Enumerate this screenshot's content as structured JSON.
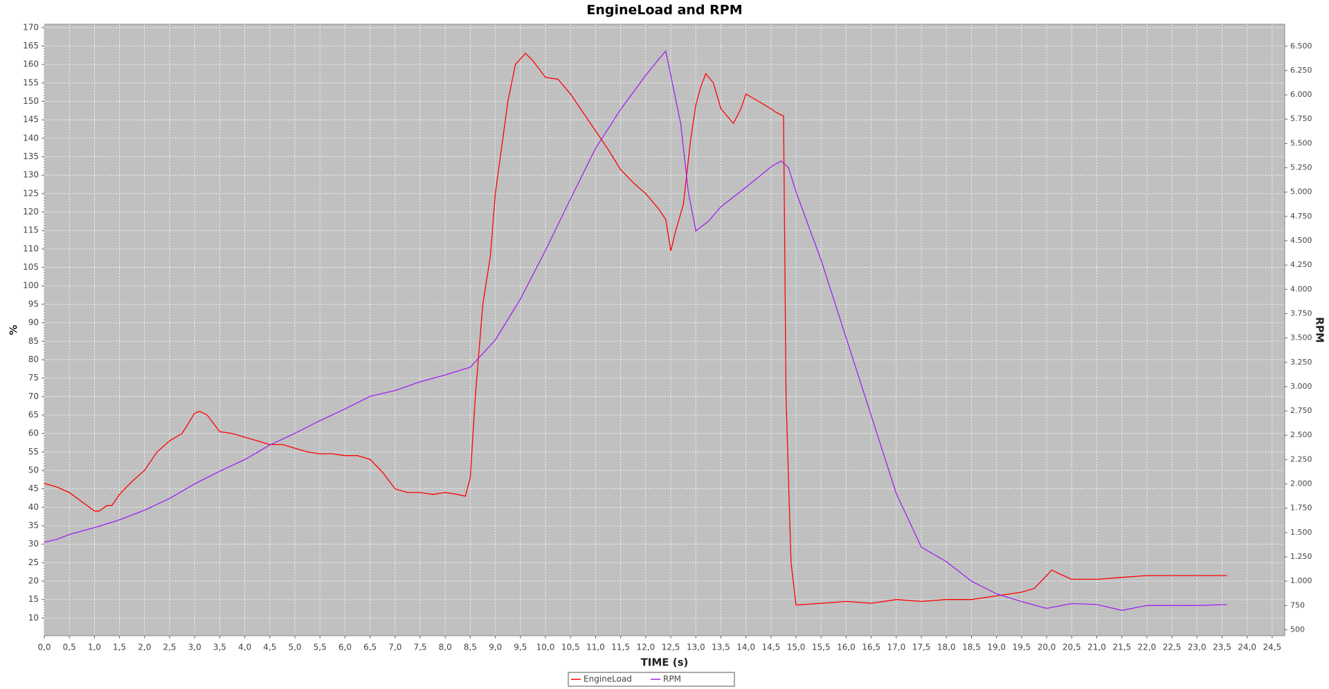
{
  "chart_data": {
    "type": "line",
    "title": "EngineLoad and RPM",
    "x_label": "TIME (s)",
    "y_label": "%",
    "y2_label": "RPM",
    "xlim": [
      0,
      24.75
    ],
    "ylim": [
      5.2,
      170.9
    ],
    "y2lim": [
      439,
      6726
    ],
    "grid": true,
    "legend": "bottom",
    "xticks": [
      {
        "value": 0,
        "label": "0,0"
      },
      {
        "value": 0.5,
        "label": "0,5"
      },
      {
        "value": 1,
        "label": "1,0"
      },
      {
        "value": 1.5,
        "label": "1,5"
      },
      {
        "value": 2,
        "label": "2,0"
      },
      {
        "value": 2.5,
        "label": "2,5"
      },
      {
        "value": 3,
        "label": "3,0"
      },
      {
        "value": 3.5,
        "label": "3,5"
      },
      {
        "value": 4,
        "label": "4,0"
      },
      {
        "value": 4.5,
        "label": "4,5"
      },
      {
        "value": 5,
        "label": "5,0"
      },
      {
        "value": 5.5,
        "label": "5,5"
      },
      {
        "value": 6,
        "label": "6,0"
      },
      {
        "value": 6.5,
        "label": "6,5"
      },
      {
        "value": 7,
        "label": "7,0"
      },
      {
        "value": 7.5,
        "label": "7,5"
      },
      {
        "value": 8,
        "label": "8,0"
      },
      {
        "value": 8.5,
        "label": "8,5"
      },
      {
        "value": 9,
        "label": "9,0"
      },
      {
        "value": 9.5,
        "label": "9,5"
      },
      {
        "value": 10,
        "label": "10,0"
      },
      {
        "value": 10.5,
        "label": "10,5"
      },
      {
        "value": 11,
        "label": "11,0"
      },
      {
        "value": 11.5,
        "label": "11,5"
      },
      {
        "value": 12,
        "label": "12,0"
      },
      {
        "value": 12.5,
        "label": "12,5"
      },
      {
        "value": 13,
        "label": "13,0"
      },
      {
        "value": 13.5,
        "label": "13,5"
      },
      {
        "value": 14,
        "label": "14,0"
      },
      {
        "value": 14.5,
        "label": "14,5"
      },
      {
        "value": 15,
        "label": "15,0"
      },
      {
        "value": 15.5,
        "label": "15,5"
      },
      {
        "value": 16,
        "label": "16,0"
      },
      {
        "value": 16.5,
        "label": "16,5"
      },
      {
        "value": 17,
        "label": "17,0"
      },
      {
        "value": 17.5,
        "label": "17,5"
      },
      {
        "value": 18,
        "label": "18,0"
      },
      {
        "value": 18.5,
        "label": "18,5"
      },
      {
        "value": 19,
        "label": "19,0"
      },
      {
        "value": 19.5,
        "label": "19,5"
      },
      {
        "value": 20,
        "label": "20,0"
      },
      {
        "value": 20.5,
        "label": "20,5"
      },
      {
        "value": 21,
        "label": "21,0"
      },
      {
        "value": 21.5,
        "label": "21,5"
      },
      {
        "value": 22,
        "label": "22,0"
      },
      {
        "value": 22.5,
        "label": "22,5"
      },
      {
        "value": 23,
        "label": "23,0"
      },
      {
        "value": 23.5,
        "label": "23,5"
      },
      {
        "value": 24,
        "label": "24,0"
      },
      {
        "value": 24.5,
        "label": "24,5"
      }
    ],
    "yticks": [
      10,
      15,
      20,
      25,
      30,
      35,
      40,
      45,
      50,
      55,
      60,
      65,
      70,
      75,
      80,
      85,
      90,
      95,
      100,
      105,
      110,
      115,
      120,
      125,
      130,
      135,
      140,
      145,
      150,
      155,
      160,
      165,
      170
    ],
    "y2ticks": [
      500,
      750,
      {
        "value": 1000,
        "label": "1.000"
      },
      {
        "value": 1250,
        "label": "1.250"
      },
      {
        "value": 1500,
        "label": "1.500"
      },
      {
        "value": 1750,
        "label": "1.750"
      },
      {
        "value": 2000,
        "label": "2.000"
      },
      {
        "value": 2250,
        "label": "2.250"
      },
      {
        "value": 2500,
        "label": "2.500"
      },
      {
        "value": 2750,
        "label": "2.750"
      },
      {
        "value": 3000,
        "label": "3.000"
      },
      {
        "value": 3250,
        "label": "3.250"
      },
      {
        "value": 3500,
        "label": "3.500"
      },
      {
        "value": 3750,
        "label": "3.750"
      },
      {
        "value": 4000,
        "label": "4.000"
      },
      {
        "value": 4250,
        "label": "4.250"
      },
      {
        "value": 4500,
        "label": "4.500"
      },
      {
        "value": 4750,
        "label": "4.750"
      },
      {
        "value": 5000,
        "label": "5.000"
      },
      {
        "value": 5250,
        "label": "5.250"
      },
      {
        "value": 5500,
        "label": "5.500"
      },
      {
        "value": 5750,
        "label": "5.750"
      },
      {
        "value": 6000,
        "label": "6.000"
      },
      {
        "value": 6250,
        "label": "6.250"
      },
      {
        "value": 6500,
        "label": "6.500"
      }
    ],
    "series": [
      {
        "name": "EngineLoad",
        "color": "#ff0000",
        "x": [
          0,
          0.25,
          0.5,
          0.75,
          1.0,
          1.1,
          1.25,
          1.35,
          1.5,
          1.75,
          2.0,
          2.25,
          2.5,
          2.75,
          3.0,
          3.1,
          3.25,
          3.5,
          3.75,
          4.0,
          4.25,
          4.5,
          4.75,
          5.0,
          5.25,
          5.5,
          5.75,
          6.0,
          6.25,
          6.5,
          6.75,
          7.0,
          7.25,
          7.5,
          7.75,
          8.0,
          8.25,
          8.4,
          8.5,
          8.6,
          8.75,
          8.9,
          9.0,
          9.25,
          9.4,
          9.6,
          9.75,
          10.0,
          10.25,
          10.5,
          10.75,
          11.0,
          11.25,
          11.5,
          11.75,
          12.0,
          12.25,
          12.4,
          12.5,
          12.6,
          12.75,
          12.9,
          13.0,
          13.1,
          13.2,
          13.35,
          13.5,
          13.75,
          13.9,
          14.0,
          14.25,
          14.5,
          14.6,
          14.75,
          14.8,
          14.9,
          15.0,
          15.5,
          16.0,
          16.5,
          17.0,
          17.5,
          18.0,
          18.5,
          19.0,
          19.5,
          19.75,
          20.0,
          20.1,
          20.25,
          20.5,
          21.0,
          21.5,
          22.0,
          23.6
        ],
        "values": [
          46.5,
          45.5,
          44,
          41.5,
          39,
          39,
          40.5,
          40.5,
          43.5,
          47,
          50,
          55,
          58,
          60,
          65.5,
          66,
          65,
          60.5,
          60,
          59,
          58,
          57,
          57,
          56,
          55,
          54.5,
          54.5,
          54,
          54,
          53,
          49.5,
          45,
          44,
          44,
          43.5,
          44,
          43.5,
          43,
          48,
          70,
          95,
          108,
          125,
          150,
          160,
          163,
          161,
          156.5,
          156,
          152,
          147,
          142,
          137,
          131.5,
          128,
          125,
          121,
          118,
          109.5,
          115,
          122,
          140,
          149,
          154,
          157.5,
          155,
          148,
          144,
          148,
          152,
          150,
          148,
          147,
          146,
          70,
          25,
          13.5,
          14,
          14.5,
          14,
          15,
          14.5,
          15,
          15,
          16,
          17,
          18,
          21.5,
          23,
          22,
          20.5,
          20.5,
          21,
          21.5,
          21.5
        ]
      },
      {
        "name": "RPM",
        "color": "#a020f0",
        "axis": "y2",
        "x": [
          0,
          0.25,
          0.5,
          1.0,
          1.5,
          2.0,
          2.5,
          3.0,
          3.5,
          4.0,
          4.5,
          5.0,
          5.5,
          6.0,
          6.5,
          7.0,
          7.5,
          8.0,
          8.5,
          9.0,
          9.5,
          10.0,
          10.5,
          11.0,
          11.5,
          12.0,
          12.25,
          12.4,
          12.5,
          12.7,
          12.85,
          13.0,
          13.25,
          13.5,
          14.0,
          14.5,
          14.7,
          14.85,
          15.0,
          15.5,
          16.0,
          16.5,
          17.0,
          17.5,
          18.0,
          18.5,
          19.0,
          19.5,
          20.0,
          20.5,
          21.0,
          21.5,
          22.0,
          22.5,
          23.0,
          23.6
        ],
        "values": [
          1400,
          1430,
          1480,
          1550,
          1630,
          1730,
          1850,
          2000,
          2130,
          2250,
          2400,
          2520,
          2650,
          2770,
          2900,
          2960,
          3050,
          3120,
          3200,
          3480,
          3900,
          4400,
          4930,
          5450,
          5850,
          6200,
          6360,
          6450,
          6200,
          5700,
          5000,
          4600,
          4700,
          4850,
          5050,
          5260,
          5320,
          5250,
          5000,
          4300,
          3500,
          2700,
          1900,
          1350,
          1200,
          1000,
          870,
          790,
          720,
          770,
          760,
          700,
          750,
          750,
          750,
          760
        ]
      }
    ]
  }
}
